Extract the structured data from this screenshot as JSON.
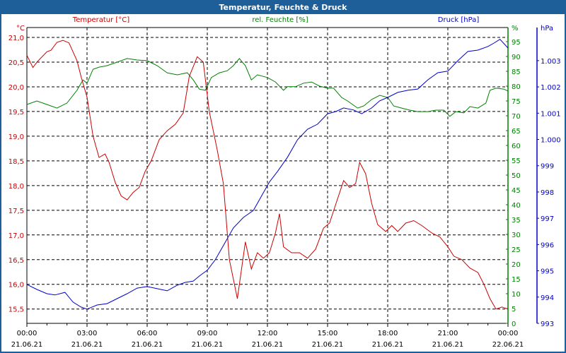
{
  "window_title": "Temperatur, Feuchte & Druck",
  "colors": {
    "temperature": "#cc0000",
    "humidity": "#008000",
    "pressure": "#0000cc",
    "title_bar": "#1f5f99"
  },
  "chart_data": {
    "type": "line",
    "title": "Temperatur, Feuchte & Druck",
    "x_unit": "hours since 21.06.21 00:00",
    "xlim": [
      0,
      24
    ],
    "x_ticks": [
      {
        "time": "00:00",
        "date": "21.06.21",
        "h": 0
      },
      {
        "time": "03:00",
        "date": "21.06.21",
        "h": 3
      },
      {
        "time": "06:00",
        "date": "21.06.21",
        "h": 6
      },
      {
        "time": "09:00",
        "date": "21.06.21",
        "h": 9
      },
      {
        "time": "12:00",
        "date": "21.06.21",
        "h": 12
      },
      {
        "time": "15:00",
        "date": "21.06.21",
        "h": 15
      },
      {
        "time": "18:00",
        "date": "21.06.21",
        "h": 18
      },
      {
        "time": "21:00",
        "date": "21.06.21",
        "h": 21
      },
      {
        "time": "00:00",
        "date": "22.06.21",
        "h": 24
      }
    ],
    "grid": true,
    "axes": {
      "temperature": {
        "label": "Temperatur [°C]",
        "unit": "°C",
        "ylim": [
          15.21,
          21.2
        ],
        "ticks": [
          "15,5",
          "16,0",
          "16,5",
          "17,0",
          "17,5",
          "18,0",
          "18,5",
          "19,0",
          "19,5",
          "20,0",
          "20,5",
          "21,0"
        ],
        "tick_values": [
          15.5,
          16,
          16.5,
          17,
          17.5,
          18,
          18.5,
          19,
          19.5,
          20,
          20.5,
          21
        ]
      },
      "humidity": {
        "label": "rel. Feuchte [%]",
        "unit": "%",
        "ylim": [
          0,
          95
        ],
        "ticks": [
          "0",
          "5",
          "10",
          "15",
          "20",
          "25",
          "30",
          "35",
          "40",
          "45",
          "50",
          "55",
          "60",
          "65",
          "70",
          "75",
          "80",
          "85",
          "90",
          "95"
        ],
        "tick_values": [
          0,
          5,
          10,
          15,
          20,
          25,
          30,
          35,
          40,
          45,
          50,
          55,
          60,
          65,
          70,
          75,
          80,
          85,
          90,
          95
        ]
      },
      "pressure": {
        "label": "Druck [hPa]",
        "unit": "hPa",
        "ylim": [
          993,
          1004.26
        ],
        "ticks": [
          "993",
          "994",
          "995",
          "996",
          "997",
          "998",
          "999",
          "1.000",
          "1.001",
          "1.002",
          "1.003"
        ],
        "tick_values": [
          993,
          994,
          995,
          996,
          997,
          998,
          999,
          1000,
          1001,
          1002,
          1003
        ]
      }
    },
    "series": [
      {
        "name": "Temperatur [°C]",
        "axis": "temperature",
        "color": "#cc0000",
        "x": [
          0,
          0.3,
          0.5,
          1.0,
          1.2,
          1.5,
          1.8,
          2.1,
          2.5,
          2.7,
          3.0,
          3.3,
          3.6,
          3.9,
          4.1,
          4.4,
          4.7,
          5.0,
          5.3,
          5.6,
          5.9,
          6.2,
          6.6,
          7.0,
          7.4,
          7.8,
          8.1,
          8.5,
          8.8,
          9.1,
          9.5,
          9.8,
          10.1,
          10.5,
          10.9,
          11.2,
          11.5,
          11.8,
          12.1,
          12.4,
          12.6,
          12.8,
          13.2,
          13.6,
          14.0,
          14.4,
          14.8,
          15.1,
          15.4,
          15.8,
          16.1,
          16.4,
          16.6,
          16.9,
          17.2,
          17.5,
          17.9,
          18.2,
          18.5,
          18.9,
          19.3,
          19.7,
          20.2,
          20.6,
          21.0,
          21.3,
          21.7,
          22.1,
          22.5,
          22.8,
          23.1,
          23.4,
          23.7,
          24.0
        ],
        "y": [
          20.64,
          20.39,
          20.5,
          20.71,
          20.74,
          20.9,
          20.94,
          20.89,
          20.53,
          20.21,
          19.79,
          19.0,
          18.57,
          18.64,
          18.47,
          18.07,
          17.79,
          17.71,
          17.86,
          17.96,
          18.29,
          18.5,
          18.93,
          19.11,
          19.24,
          19.47,
          20.21,
          20.61,
          20.5,
          19.5,
          18.71,
          18.04,
          16.5,
          15.71,
          16.86,
          16.31,
          16.64,
          16.53,
          16.64,
          17.04,
          17.43,
          16.76,
          16.64,
          16.64,
          16.53,
          16.71,
          17.14,
          17.24,
          17.61,
          18.1,
          17.96,
          18.04,
          18.47,
          18.24,
          17.64,
          17.21,
          17.07,
          17.19,
          17.07,
          17.24,
          17.29,
          17.19,
          17.04,
          16.96,
          16.76,
          16.57,
          16.5,
          16.33,
          16.24,
          16.0,
          15.71,
          15.5,
          15.54,
          15.5
        ]
      },
      {
        "name": "rel. Feuchte [%]",
        "axis": "humidity",
        "color": "#008000",
        "x": [
          0,
          0.5,
          1.0,
          1.5,
          2.0,
          2.5,
          2.8,
          3.0,
          3.3,
          3.6,
          4.0,
          4.5,
          5.0,
          5.5,
          6.0,
          6.5,
          7.0,
          7.5,
          8.0,
          8.3,
          8.6,
          8.9,
          9.2,
          9.6,
          10.0,
          10.3,
          10.6,
          10.9,
          11.2,
          11.5,
          12.0,
          12.4,
          12.8,
          13.0,
          13.4,
          13.8,
          14.2,
          14.6,
          15.0,
          15.3,
          15.7,
          16.0,
          16.5,
          16.8,
          17.2,
          17.6,
          18.0,
          18.3,
          18.7,
          19.1,
          19.5,
          20.0,
          20.4,
          20.8,
          21.1,
          21.4,
          21.8,
          22.1,
          22.5,
          22.9,
          23.1,
          23.4,
          23.8,
          24.0
        ],
        "y": [
          73.8,
          75.0,
          73.8,
          72.6,
          74.3,
          78.6,
          82.1,
          81.0,
          85.7,
          86.4,
          86.9,
          88.1,
          89.3,
          88.8,
          88.6,
          86.9,
          84.5,
          83.8,
          84.5,
          82.1,
          79.0,
          78.6,
          82.9,
          84.5,
          85.2,
          86.9,
          89.3,
          86.9,
          82.1,
          83.8,
          82.9,
          81.4,
          78.6,
          79.8,
          79.8,
          81.0,
          81.4,
          80.0,
          79.3,
          79.3,
          76.2,
          75.0,
          72.6,
          73.3,
          75.5,
          76.9,
          76.2,
          73.3,
          72.6,
          71.9,
          71.4,
          71.4,
          71.9,
          71.9,
          69.8,
          71.4,
          71.0,
          73.1,
          72.6,
          74.3,
          78.6,
          79.3,
          79.0,
          78.3
        ]
      },
      {
        "name": "Druck [hPa]",
        "axis": "pressure",
        "color": "#0000cc",
        "x": [
          0,
          0.5,
          1.0,
          1.4,
          1.9,
          2.3,
          2.7,
          3.0,
          3.5,
          4.0,
          4.5,
          5.0,
          5.5,
          6.0,
          6.5,
          7.0,
          7.5,
          7.9,
          8.3,
          8.6,
          9.0,
          9.4,
          9.8,
          10.3,
          10.8,
          11.3,
          11.7,
          12.1,
          12.5,
          13.0,
          13.5,
          14.0,
          14.5,
          15.0,
          15.4,
          15.8,
          16.3,
          16.7,
          17.2,
          17.6,
          18.0,
          18.5,
          19.0,
          19.5,
          20.0,
          20.5,
          21.0,
          21.5,
          22.0,
          22.5,
          23.0,
          23.3,
          23.6,
          24.0
        ],
        "y": [
          994.48,
          994.29,
          994.13,
          994.08,
          994.18,
          993.81,
          993.62,
          993.54,
          993.7,
          993.75,
          993.94,
          994.13,
          994.34,
          994.4,
          994.32,
          994.24,
          994.45,
          994.56,
          994.61,
          994.8,
          995.02,
          995.42,
          995.96,
          996.63,
          997.03,
          997.3,
          997.84,
          998.38,
          998.78,
          999.32,
          999.99,
          1000.39,
          1000.58,
          1000.98,
          1001.06,
          1001.2,
          1001.12,
          1000.98,
          1001.2,
          1001.47,
          1001.6,
          1001.79,
          1001.87,
          1001.92,
          1002.27,
          1002.54,
          1002.6,
          1003.0,
          1003.35,
          1003.4,
          1003.54,
          1003.67,
          1003.81,
          1003.48
        ]
      }
    ]
  }
}
